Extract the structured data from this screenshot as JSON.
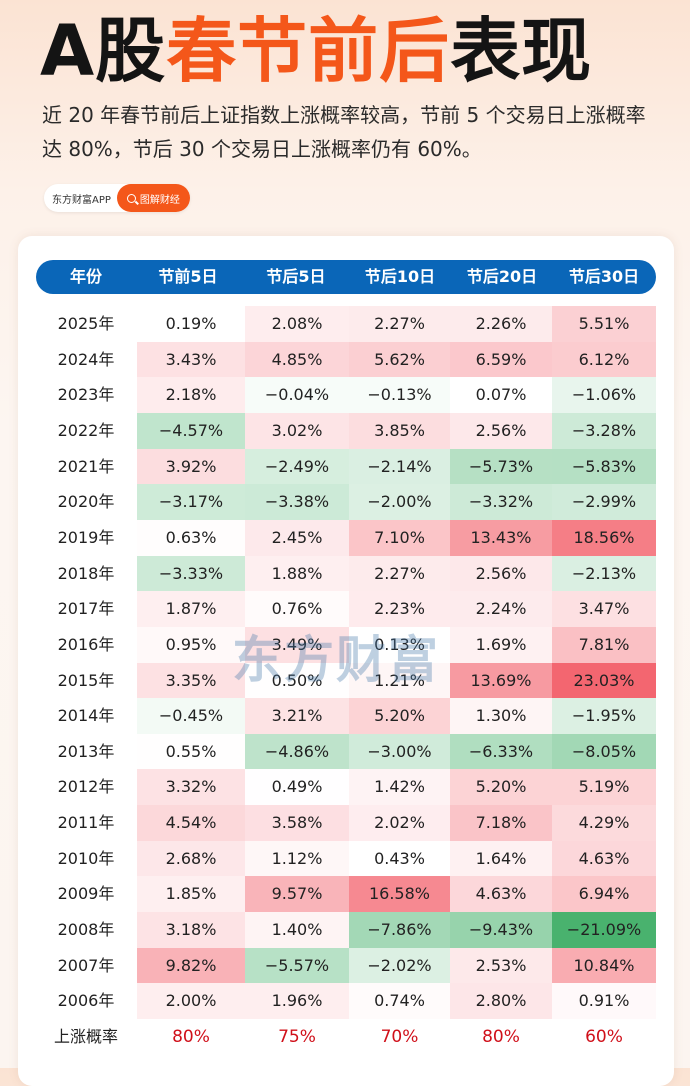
{
  "header": {
    "title_prefix": "A股",
    "title_highlight": "春节前后",
    "title_suffix": "表现",
    "subtitle": "近 20 年春节前后上证指数上涨概率较高，节前 5 个交易日上涨概率达 80%，节后 30 个交易日上涨概率仍有 60%。",
    "source": "东方财富APP",
    "tag": "图解财经"
  },
  "watermark": "东方财富",
  "colors": {
    "accent": "#f4571a",
    "header_bg": "#0a66b8",
    "positive": "#f25560",
    "negative": "#3fae66",
    "probability_text": "#d0101a"
  },
  "chart_data": {
    "type": "table",
    "title": "A股春节前后表现",
    "columns": [
      "年份",
      "节前5日",
      "节后5日",
      "节后10日",
      "节后20日",
      "节后30日"
    ],
    "rows": [
      {
        "year": "2025年",
        "values": [
          0.19,
          2.08,
          2.27,
          2.26,
          5.51
        ],
        "labels": [
          "0.19%",
          "2.08%",
          "2.27%",
          "2.26%",
          "5.51%"
        ]
      },
      {
        "year": "2024年",
        "values": [
          3.43,
          4.85,
          5.62,
          6.59,
          6.12
        ],
        "labels": [
          "3.43%",
          "4.85%",
          "5.62%",
          "6.59%",
          "6.12%"
        ]
      },
      {
        "year": "2023年",
        "values": [
          2.18,
          -0.04,
          -0.13,
          0.07,
          -1.06
        ],
        "labels": [
          "2.18%",
          "−0.04%",
          "−0.13%",
          "0.07%",
          "−1.06%"
        ]
      },
      {
        "year": "2022年",
        "values": [
          -4.57,
          3.02,
          3.85,
          2.56,
          -3.28
        ],
        "labels": [
          "−4.57%",
          "3.02%",
          "3.85%",
          "2.56%",
          "−3.28%"
        ]
      },
      {
        "year": "2021年",
        "values": [
          3.92,
          -2.49,
          -2.14,
          -5.73,
          -5.83
        ],
        "labels": [
          "3.92%",
          "−2.49%",
          "−2.14%",
          "−5.73%",
          "−5.83%"
        ]
      },
      {
        "year": "2020年",
        "values": [
          -3.17,
          -3.38,
          -2.0,
          -3.32,
          -2.99
        ],
        "labels": [
          "−3.17%",
          "−3.38%",
          "−2.00%",
          "−3.32%",
          "−2.99%"
        ]
      },
      {
        "year": "2019年",
        "values": [
          0.63,
          2.45,
          7.1,
          13.43,
          18.56
        ],
        "labels": [
          "0.63%",
          "2.45%",
          "7.10%",
          "13.43%",
          "18.56%"
        ]
      },
      {
        "year": "2018年",
        "values": [
          -3.33,
          1.88,
          2.27,
          2.56,
          -2.13
        ],
        "labels": [
          "−3.33%",
          "1.88%",
          "2.27%",
          "2.56%",
          "−2.13%"
        ]
      },
      {
        "year": "2017年",
        "values": [
          1.87,
          0.76,
          2.23,
          2.24,
          3.47
        ],
        "labels": [
          "1.87%",
          "0.76%",
          "2.23%",
          "2.24%",
          "3.47%"
        ]
      },
      {
        "year": "2016年",
        "values": [
          0.95,
          3.49,
          0.13,
          1.69,
          7.81
        ],
        "labels": [
          "0.95%",
          "3.49%",
          "0.13%",
          "1.69%",
          "7.81%"
        ]
      },
      {
        "year": "2015年",
        "values": [
          3.35,
          0.5,
          1.21,
          13.69,
          23.03
        ],
        "labels": [
          "3.35%",
          "0.50%",
          "1.21%",
          "13.69%",
          "23.03%"
        ]
      },
      {
        "year": "2014年",
        "values": [
          -0.45,
          3.21,
          5.2,
          1.3,
          -1.95
        ],
        "labels": [
          "−0.45%",
          "3.21%",
          "5.20%",
          "1.30%",
          "−1.95%"
        ]
      },
      {
        "year": "2013年",
        "values": [
          0.55,
          -4.86,
          -3.0,
          -6.33,
          -8.05
        ],
        "labels": [
          "0.55%",
          "−4.86%",
          "−3.00%",
          "−6.33%",
          "−8.05%"
        ]
      },
      {
        "year": "2012年",
        "values": [
          3.32,
          0.49,
          1.42,
          5.2,
          5.19
        ],
        "labels": [
          "3.32%",
          "0.49%",
          "1.42%",
          "5.20%",
          "5.19%"
        ]
      },
      {
        "year": "2011年",
        "values": [
          4.54,
          3.58,
          2.02,
          7.18,
          4.29
        ],
        "labels": [
          "4.54%",
          "3.58%",
          "2.02%",
          "7.18%",
          "4.29%"
        ]
      },
      {
        "year": "2010年",
        "values": [
          2.68,
          1.12,
          0.43,
          1.64,
          4.63
        ],
        "labels": [
          "2.68%",
          "1.12%",
          "0.43%",
          "1.64%",
          "4.63%"
        ]
      },
      {
        "year": "2009年",
        "values": [
          1.85,
          9.57,
          16.58,
          4.63,
          6.94
        ],
        "labels": [
          "1.85%",
          "9.57%",
          "16.58%",
          "4.63%",
          "6.94%"
        ]
      },
      {
        "year": "2008年",
        "values": [
          3.18,
          1.4,
          -7.86,
          -9.43,
          -21.09
        ],
        "labels": [
          "3.18%",
          "1.40%",
          "−7.86%",
          "−9.43%",
          "−21.09%"
        ]
      },
      {
        "year": "2007年",
        "values": [
          9.82,
          -5.57,
          -2.02,
          2.53,
          10.84
        ],
        "labels": [
          "9.82%",
          "−5.57%",
          "−2.02%",
          "2.53%",
          "10.84%"
        ]
      },
      {
        "year": "2006年",
        "values": [
          2.0,
          1.96,
          0.74,
          2.8,
          0.91
        ],
        "labels": [
          "2.00%",
          "1.96%",
          "0.74%",
          "2.80%",
          "0.91%"
        ]
      }
    ],
    "summary": {
      "label": "上涨概率",
      "values": [
        "80%",
        "75%",
        "70%",
        "80%",
        "60%"
      ]
    }
  }
}
